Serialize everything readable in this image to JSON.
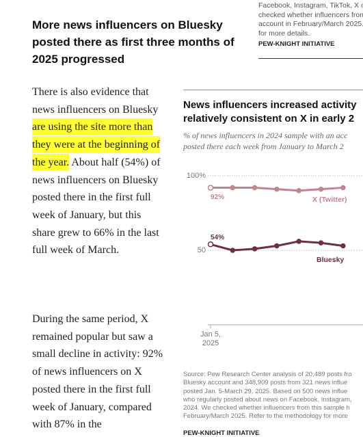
{
  "sidebar_note": {
    "lines": [
      "Facebook, Instagram, TikTok, X or",
      "checked whether influencers from",
      "account in February/March 2025.",
      "for more details."
    ],
    "org": "PEW-KNIGHT INITIATIVE"
  },
  "article": {
    "heading": "More news influencers on Bluesky posted there as first three months of 2025 progressed",
    "paragraphs": [
      [
        "There is also evidence that news influencers on Bluesky ",
        "are using the site more than they were at the beginning of the year.",
        "About half (54%) of news influencers on Bluesky posted there in the first full week of January, but this share grew to 66% in the last full week of March."
      ],
      [
        "During the same period, X remained popular but saw a small decline in activity: 92% of news influencers on X posted there in the first full week of January, compared with 87% in the"
      ]
    ]
  },
  "chart_data": {
    "type": "line",
    "title": "News influencers increased activity on Bluesky, stayed relatively consistent on X in early 2025",
    "title_lines": [
      "News influencers increased activity",
      "relatively consistent on X in early 2"
    ],
    "subtitle_lines": [
      "% of news influencers in 2024 sample with an acc",
      "posted there each week from January to March 2"
    ],
    "categories": [
      "Jan 5, 2025",
      null,
      null,
      null,
      null,
      null,
      null
    ],
    "series": [
      {
        "name": "X (Twitter)",
        "color": "#c4848e",
        "values": [
          92,
          92,
          92,
          91,
          90,
          91,
          92
        ],
        "value_labels": [
          "92%",
          null,
          null,
          null,
          null,
          null,
          null
        ]
      },
      {
        "name": "Bluesky",
        "color": "#6e2f40",
        "values": [
          54,
          50,
          51,
          53,
          56,
          55,
          53
        ],
        "value_labels": [
          "54%",
          null,
          null,
          null,
          null,
          null,
          null
        ]
      }
    ],
    "ylim": [
      0,
      100
    ],
    "yticks": [
      {
        "value": 100,
        "label": "100%"
      },
      50
    ],
    "grid": true,
    "source_lines": [
      "Source: Pew Research Center analysis of 20,489 posts fro",
      "Bluesky account and 348,909 posts from 321 news influe",
      "posted Jan. 5-March 29, 2025. Based on 500 news influe",
      "who regularly posted about news on Facebook, Instagram,",
      "2024. We checked whether influencers from this sample h",
      "February/March 2025. Refer to the methodology for more"
    ],
    "org": "PEW-KNIGHT INITIATIVE"
  }
}
